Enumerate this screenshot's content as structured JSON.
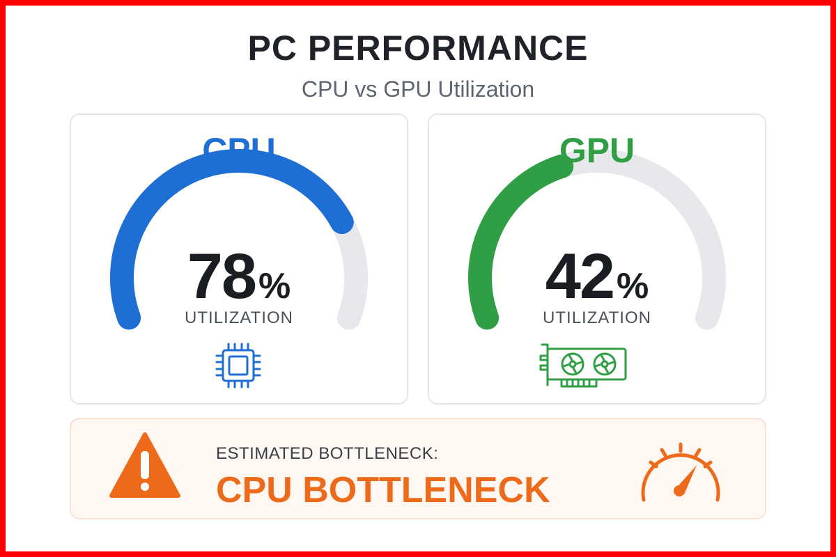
{
  "header": {
    "title": "PC PERFORMANCE",
    "subtitle": "CPU vs GPU Utilization"
  },
  "cpu": {
    "name": "CPU",
    "value": "78",
    "percent_sign": "%",
    "label": "UTILIZATION",
    "fraction": 0.78,
    "color": "#1f6ed4",
    "icon": "cpu-chip-icon"
  },
  "gpu": {
    "name": "GPU",
    "value": "42",
    "percent_sign": "%",
    "label": "UTILIZATION",
    "fraction": 0.42,
    "color": "#2f9e44",
    "icon": "graphics-card-icon"
  },
  "bottleneck": {
    "label": "ESTIMATED BOTTLENECK:",
    "value": "CPU BOTTLENECK",
    "color": "#ee6a1b",
    "icons": [
      "warning-icon",
      "speedometer-icon"
    ]
  },
  "colors": {
    "track": "#e6e8eb",
    "frame": "#ff0000"
  }
}
